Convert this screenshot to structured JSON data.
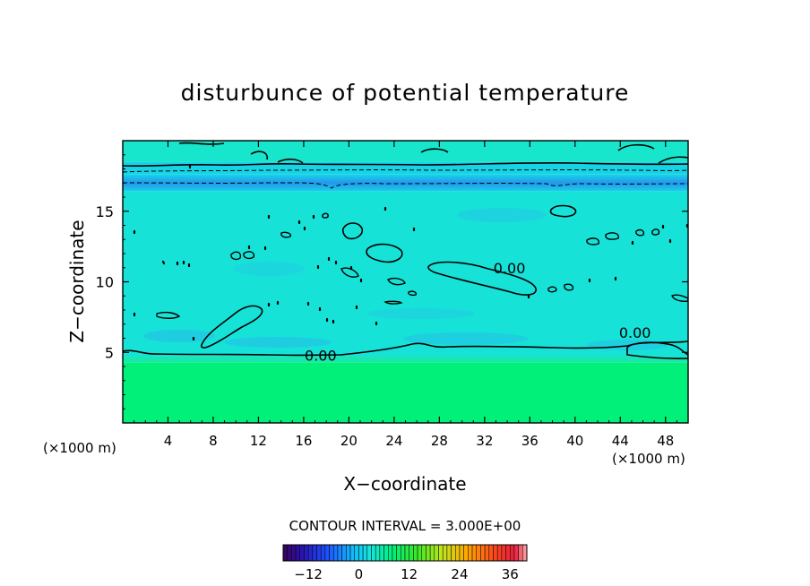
{
  "chart_data": {
    "type": "heatmap",
    "title": "disturbunce of potential temperature",
    "xlabel": "X−coordinate",
    "ylabel": "Z−coordinate",
    "x_unit_left": "(×1000 m)",
    "x_unit_right": "(×1000 m)",
    "xlim": [
      0,
      50
    ],
    "ylim": [
      0,
      20
    ],
    "x_ticks": [
      4,
      8,
      12,
      16,
      20,
      24,
      28,
      32,
      36,
      40,
      44,
      48
    ],
    "y_ticks": [
      5,
      10,
      15
    ],
    "contour_interval_text": "CONTOUR INTERVAL = 3.000E+00",
    "contour_labels": [
      {
        "text": "0.00",
        "x": 17.5,
        "z": 4.8
      },
      {
        "text": "0.00",
        "x": 34.2,
        "z": 11.0
      },
      {
        "text": "0.00",
        "x": 45.3,
        "z": 6.4
      }
    ],
    "colorbar": {
      "min": -18,
      "max": 40,
      "ticks": [
        -12,
        0,
        12,
        24,
        36
      ]
    },
    "bands": [
      {
        "z0": 0,
        "z1": 4.3,
        "value": 6,
        "color": "#00f07a"
      },
      {
        "z0": 4.3,
        "z1": 4.7,
        "value": 2,
        "color": "#18e8b0"
      },
      {
        "z0": 4.7,
        "z1": 16.4,
        "value": -1,
        "color": "#16e2d8"
      },
      {
        "z0": 16.4,
        "z1": 17.6,
        "value": -4,
        "color": "#24a4f2"
      },
      {
        "z0": 17.6,
        "z1": 18.5,
        "value": -2,
        "color": "#16d4e6"
      },
      {
        "z0": 18.5,
        "z1": 20,
        "value": 0,
        "color": "#18e6cc"
      }
    ]
  }
}
